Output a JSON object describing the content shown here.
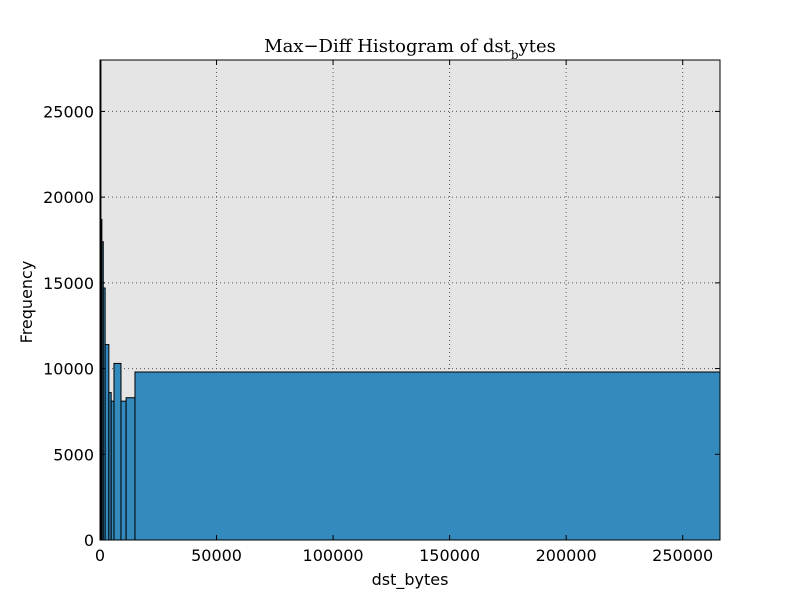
{
  "chart_data": {
    "type": "bar",
    "title": "Max−Diff Histogram of dst_bytes",
    "xlabel": "dst_bytes",
    "ylabel": "Frequency",
    "xlim": [
      0,
      266000
    ],
    "ylim": [
      0,
      28000
    ],
    "xticks": [
      0,
      50000,
      100000,
      150000,
      200000,
      250000
    ],
    "yticks": [
      0,
      5000,
      10000,
      15000,
      20000,
      25000
    ],
    "grid": true,
    "colors": {
      "bar_fill": "#348abd",
      "bar_edge": "#000000",
      "plot_background": "#e5e5e5",
      "grid": "#555555"
    },
    "bins": [
      {
        "x0": 0,
        "x1": 400,
        "value": 28000
      },
      {
        "x0": 400,
        "x1": 800,
        "value": 18700
      },
      {
        "x0": 800,
        "x1": 1400,
        "value": 17400
      },
      {
        "x0": 1400,
        "x1": 2200,
        "value": 14700
      },
      {
        "x0": 2200,
        "x1": 3800,
        "value": 11400
      },
      {
        "x0": 3800,
        "x1": 4800,
        "value": 8600
      },
      {
        "x0": 4800,
        "x1": 6000,
        "value": 8100
      },
      {
        "x0": 6000,
        "x1": 9000,
        "value": 10300
      },
      {
        "x0": 9000,
        "x1": 11200,
        "value": 8100
      },
      {
        "x0": 11200,
        "x1": 15000,
        "value": 8300
      },
      {
        "x0": 15000,
        "x1": 266000,
        "value": 9800
      }
    ]
  }
}
